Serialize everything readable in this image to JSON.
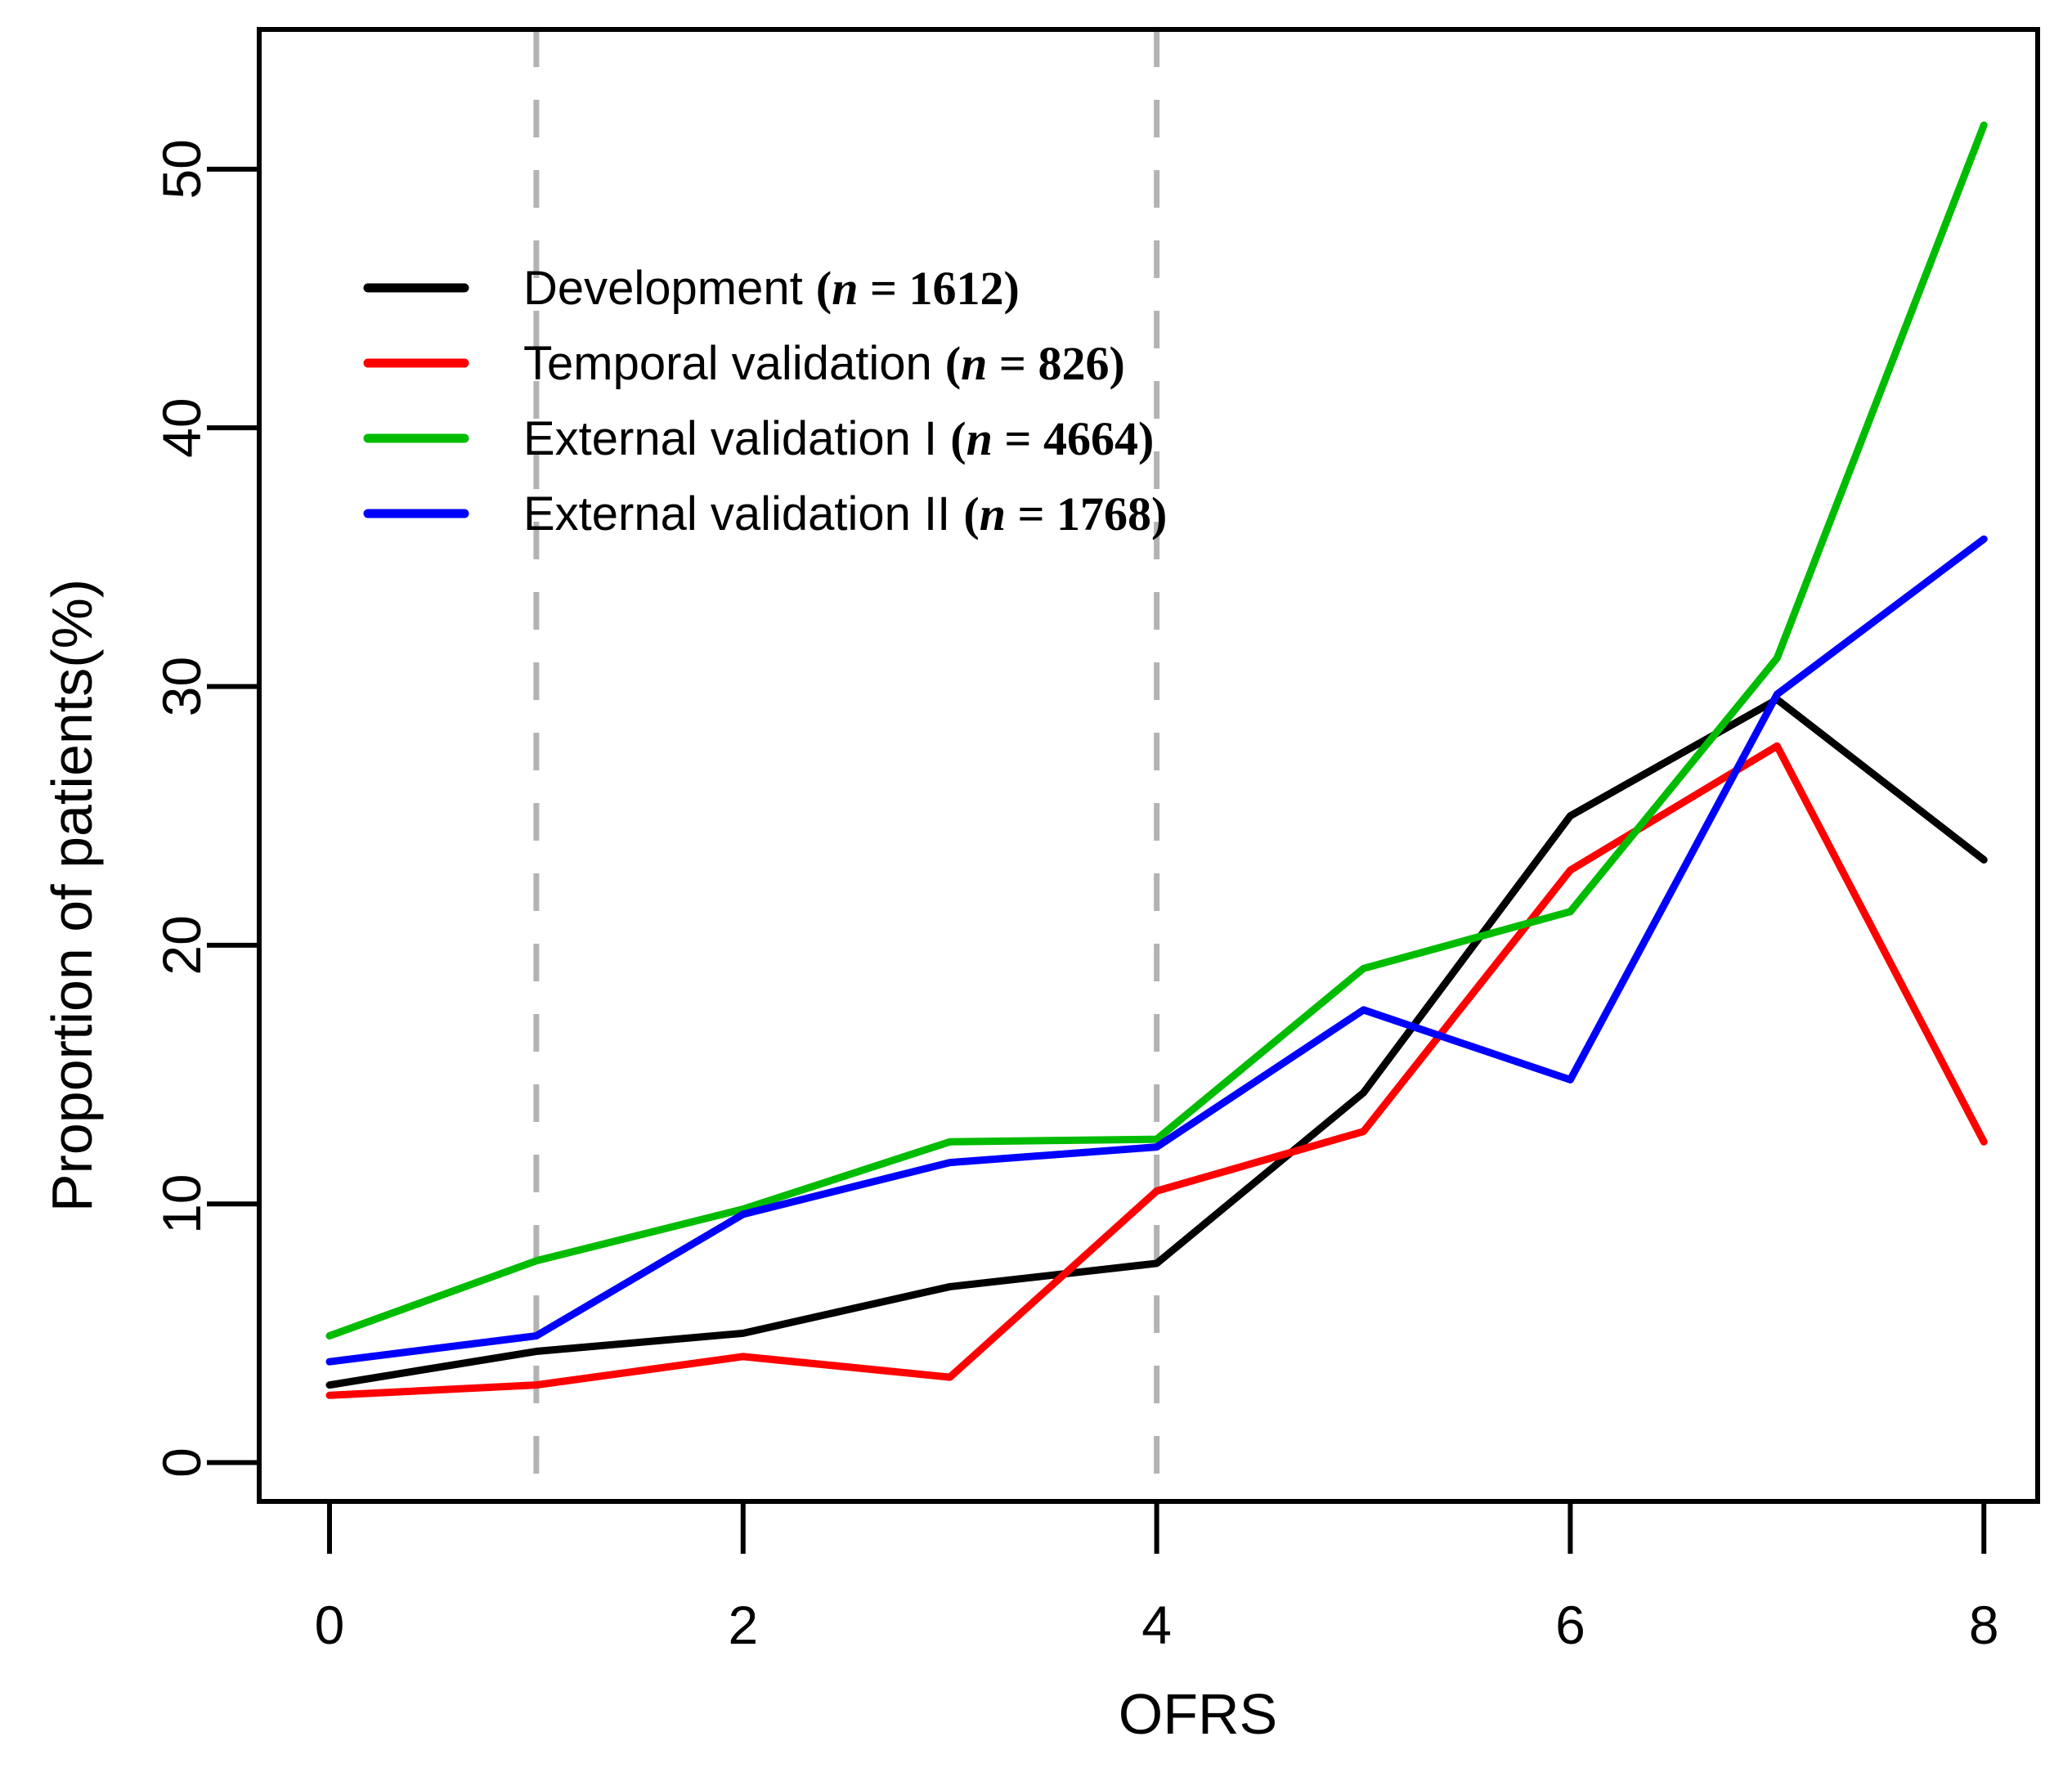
{
  "chart_data": {
    "type": "line",
    "title": "",
    "xlabel": "OFRS",
    "ylabel": "Proportion of patients(%)",
    "x": [
      0,
      1,
      2,
      3,
      4,
      5,
      6,
      7,
      8
    ],
    "x_ticks": [
      0,
      2,
      4,
      6,
      8
    ],
    "y_ticks": [
      0,
      10,
      20,
      30,
      40,
      50
    ],
    "xlim": [
      -0.34,
      8.26
    ],
    "ylim": [
      -1.5,
      55.4
    ],
    "grid": false,
    "legend_position": "top-left",
    "axis_color": "#000000",
    "background_color": "#ffffff",
    "reference_lines": {
      "x_values": [
        1,
        4
      ],
      "style": "dashed",
      "color": "#b3b3b3"
    },
    "series": [
      {
        "name": "Development",
        "n_label_open": "(",
        "n_var": "n",
        "n_eq": " = ",
        "n": "1612",
        "n_label_close": ")",
        "color": "#000000",
        "values": [
          3.0,
          4.3,
          5.0,
          6.8,
          7.7,
          14.3,
          25.0,
          29.5,
          23.3
        ]
      },
      {
        "name": "Temporal validation",
        "n_label_open": "(",
        "n_var": "n",
        "n_eq": " = ",
        "n": "826",
        "n_label_close": ")",
        "color": "#ff0000",
        "values": [
          2.6,
          3.0,
          4.1,
          3.3,
          10.5,
          12.8,
          22.9,
          27.7,
          12.4
        ]
      },
      {
        "name": "External validation I",
        "n_label_open": "(",
        "n_var": "n",
        "n_eq": " = ",
        "n": "4664",
        "n_label_close": ")",
        "color": "#00bc00",
        "values": [
          4.9,
          7.8,
          9.8,
          12.4,
          12.5,
          19.1,
          21.3,
          31.1,
          51.7
        ]
      },
      {
        "name": "External validation II",
        "n_label_open": "(",
        "n_var": "n",
        "n_eq": " = ",
        "n": "1768",
        "n_label_close": ")",
        "color": "#0000ff",
        "values": [
          3.9,
          4.9,
          9.6,
          11.6,
          12.2,
          17.5,
          14.8,
          29.7,
          35.7
        ]
      }
    ]
  }
}
